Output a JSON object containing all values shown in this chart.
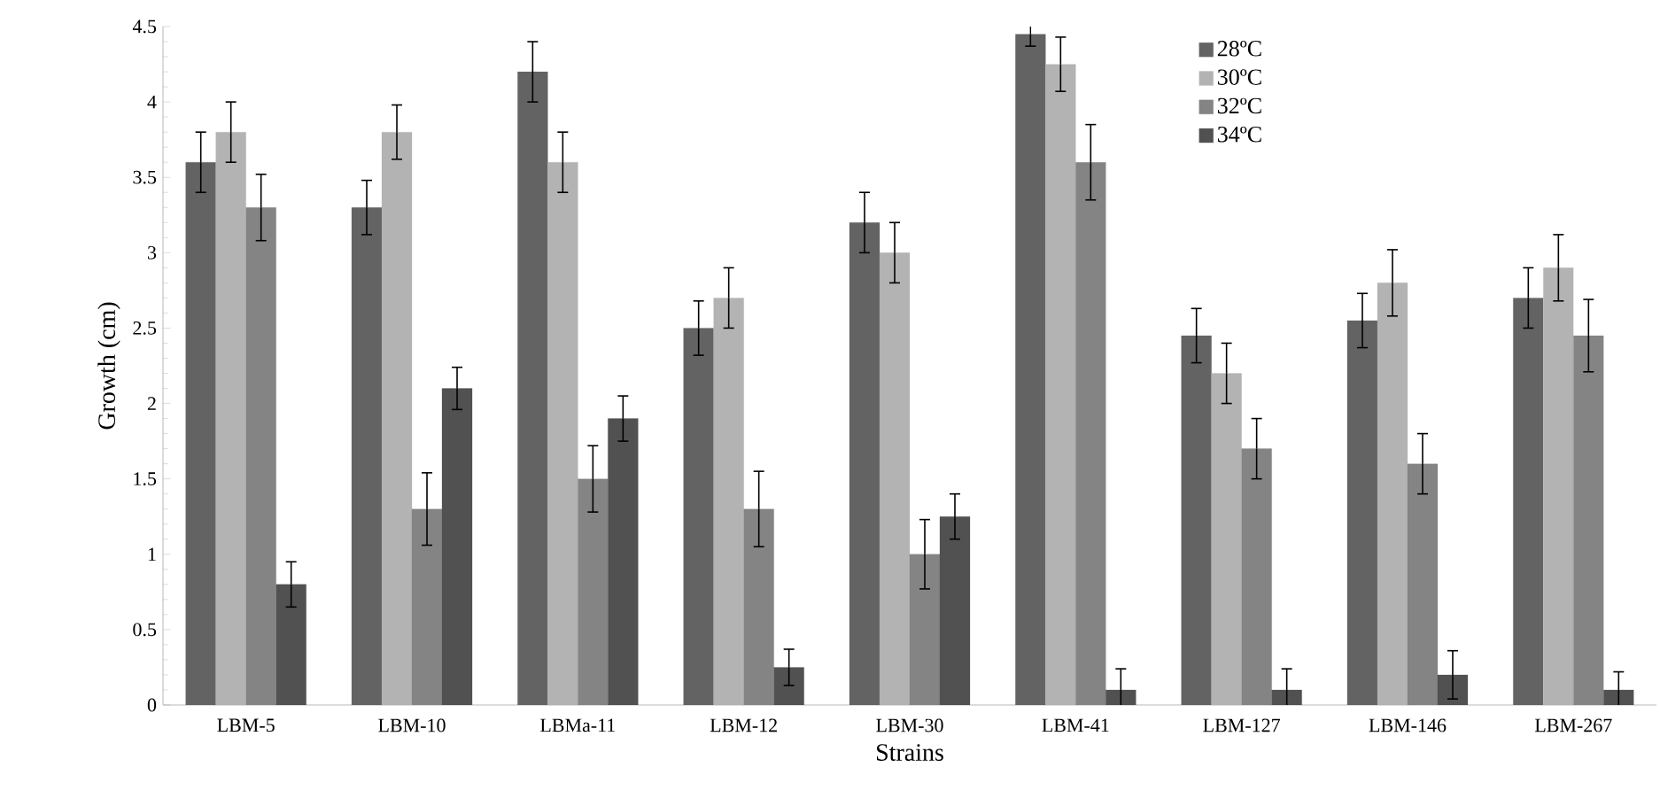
{
  "chart_data": {
    "type": "bar",
    "xlabel": "Strains",
    "ylabel": "Growth (cm)",
    "categories": [
      "LBM-5",
      "LBM-10",
      "LBMa-11",
      "LBM-12",
      "LBM-30",
      "LBM-41",
      "LBM-127",
      "LBM-146",
      "LBM-267"
    ],
    "series": [
      {
        "name": "28ºC",
        "color": "#636363",
        "values": [
          3.6,
          3.3,
          4.2,
          2.5,
          3.2,
          4.45,
          2.45,
          2.55,
          2.7
        ],
        "errors": [
          0.2,
          0.18,
          0.2,
          0.18,
          0.2,
          0.08,
          0.18,
          0.18,
          0.2
        ]
      },
      {
        "name": "30ºC",
        "color": "#b3b3b3",
        "values": [
          3.8,
          3.8,
          3.6,
          2.7,
          3.0,
          4.25,
          2.2,
          2.8,
          2.9
        ],
        "errors": [
          0.2,
          0.18,
          0.2,
          0.2,
          0.2,
          0.18,
          0.2,
          0.22,
          0.22
        ]
      },
      {
        "name": "32ºC",
        "color": "#848484",
        "values": [
          3.3,
          1.3,
          1.5,
          1.3,
          1.0,
          3.6,
          1.7,
          1.6,
          2.45
        ],
        "errors": [
          0.22,
          0.24,
          0.22,
          0.25,
          0.23,
          0.25,
          0.2,
          0.2,
          0.24
        ]
      },
      {
        "name": "34ºC",
        "color": "#515151",
        "values": [
          0.8,
          2.1,
          1.9,
          0.25,
          1.25,
          0.1,
          0.1,
          0.2,
          0.1
        ],
        "errors": [
          0.15,
          0.14,
          0.15,
          0.12,
          0.15,
          0.14,
          0.14,
          0.16,
          0.12
        ]
      }
    ],
    "ylim": [
      0,
      4.5
    ],
    "yticks": [
      0,
      0.5,
      1,
      1.5,
      2,
      2.5,
      3,
      3.5,
      4,
      4.5
    ],
    "grid": false,
    "legend": "top right"
  }
}
